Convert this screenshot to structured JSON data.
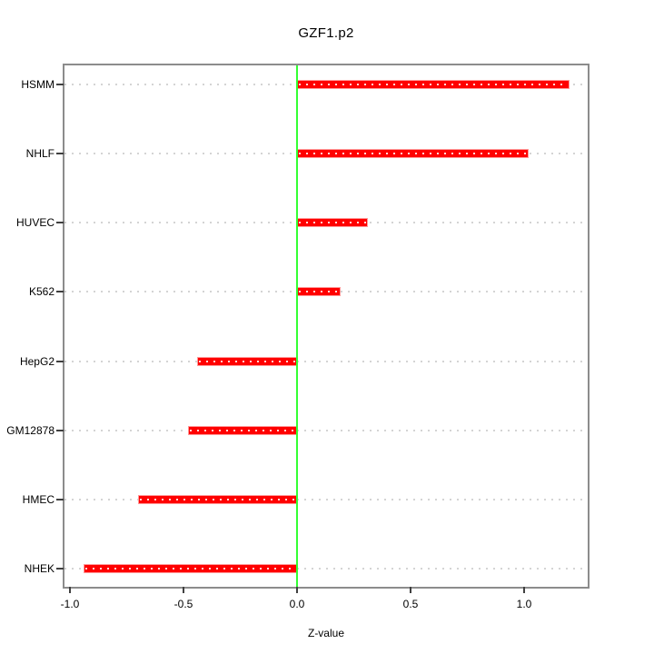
{
  "chart_data": {
    "type": "bar",
    "orientation": "horizontal",
    "title": "GZF1.p2",
    "xlabel": "Z-value",
    "ylabel": "",
    "categories": [
      "HSMM",
      "NHLF",
      "HUVEC",
      "K562",
      "HepG2",
      "GM12878",
      "HMEC",
      "NHEK"
    ],
    "values": [
      1.2,
      1.02,
      0.31,
      0.19,
      -0.44,
      -0.48,
      -0.7,
      -0.94
    ],
    "x_ticks": [
      -1.0,
      -0.5,
      0.0,
      0.5,
      1.0
    ],
    "x_tick_labels": [
      "-1.0",
      "-0.5",
      "0.0",
      "0.5",
      "1.0"
    ],
    "xlim": [
      -1.024,
      1.28
    ],
    "zero_line_at": 0.0,
    "grid": "dotted-horizontal-rows",
    "legend": "none",
    "colors": {
      "bar": "#ff0000",
      "bar_edge": "#ff9999",
      "zero_line": "#33ff33",
      "grid": "#d4d4d4",
      "box": "#8c8c8c",
      "text": "#000000",
      "background": "#ffffff"
    }
  }
}
